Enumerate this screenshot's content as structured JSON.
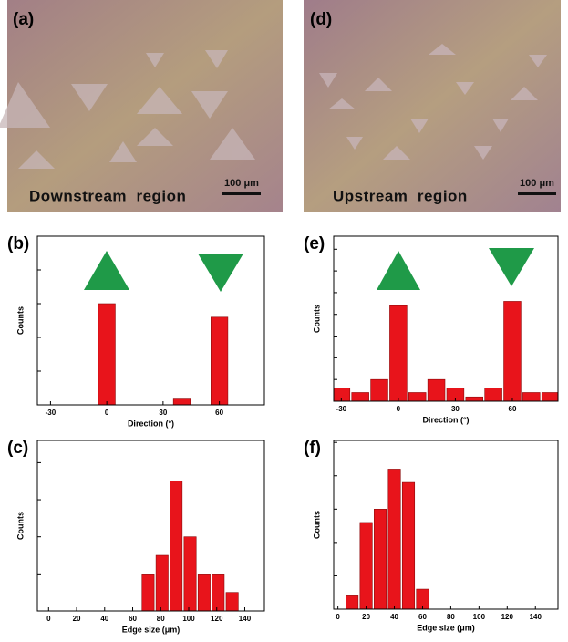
{
  "images": [
    {
      "label": "(a)",
      "caption": "Downstream  region",
      "scale": "100 μm"
    },
    {
      "label": "(d)",
      "caption": "Upstream  region",
      "scale": "100 μm"
    }
  ],
  "chart_data": [
    {
      "type": "histogram",
      "label": "(b)",
      "xlabel": "Direction (°)",
      "ylabel": "Counts",
      "color": "#e8141b",
      "bins": [
        -35,
        -25,
        -15,
        -5,
        5,
        15,
        25,
        35,
        45,
        55,
        65,
        75,
        85
      ],
      "values": [
        0,
        0,
        0,
        15,
        0,
        0,
        0,
        1,
        0,
        13,
        0,
        0
      ],
      "xlim": [
        -37,
        84
      ],
      "xticks": [
        -30,
        0,
        30,
        60
      ],
      "ylim": [
        0,
        25
      ],
      "yticks": [
        0,
        5,
        10,
        15,
        20,
        25
      ]
    },
    {
      "type": "histogram",
      "label": "(e)",
      "xlabel": "Direction (°)",
      "ylabel": "Counts",
      "color": "#e8141b",
      "bins": [
        -35,
        -25,
        -15,
        -5,
        5,
        15,
        25,
        35,
        45,
        55,
        65,
        75,
        85
      ],
      "values": [
        3,
        2,
        5,
        22,
        2,
        5,
        3,
        1,
        3,
        23,
        2,
        2
      ],
      "xlim": [
        -34,
        84
      ],
      "xticks": [
        -30,
        0,
        30,
        60
      ],
      "ylim": [
        0,
        38
      ],
      "yticks": [
        0,
        5,
        10,
        15,
        20,
        25,
        30,
        35
      ]
    },
    {
      "type": "histogram",
      "label": "(c)",
      "xlabel": "Edge size (μm)",
      "ylabel": "Counts",
      "color": "#e8141b",
      "bins": [
        66,
        76,
        86,
        96,
        106,
        116,
        126,
        136
      ],
      "values": [
        2,
        3,
        7,
        4,
        2,
        2,
        1
      ],
      "xlim": [
        -8,
        154
      ],
      "xticks": [
        0,
        20,
        40,
        60,
        80,
        100,
        120,
        140
      ],
      "ylim": [
        0,
        9.2
      ],
      "yticks": [
        0,
        2,
        4,
        6,
        8
      ]
    },
    {
      "type": "histogram",
      "label": "(f)",
      "xlabel": "Edge size (μm)",
      "ylabel": "Counts",
      "color": "#e8141b",
      "bins": [
        5,
        15,
        25,
        35,
        45,
        55,
        65
      ],
      "values": [
        2,
        13,
        15,
        21,
        19,
        3
      ],
      "xlim": [
        -3,
        156
      ],
      "xticks": [
        0,
        20,
        40,
        60,
        80,
        100,
        120,
        140
      ],
      "ylim": [
        0,
        25.3
      ],
      "yticks": [
        0,
        5,
        10,
        15,
        20,
        25
      ]
    }
  ]
}
